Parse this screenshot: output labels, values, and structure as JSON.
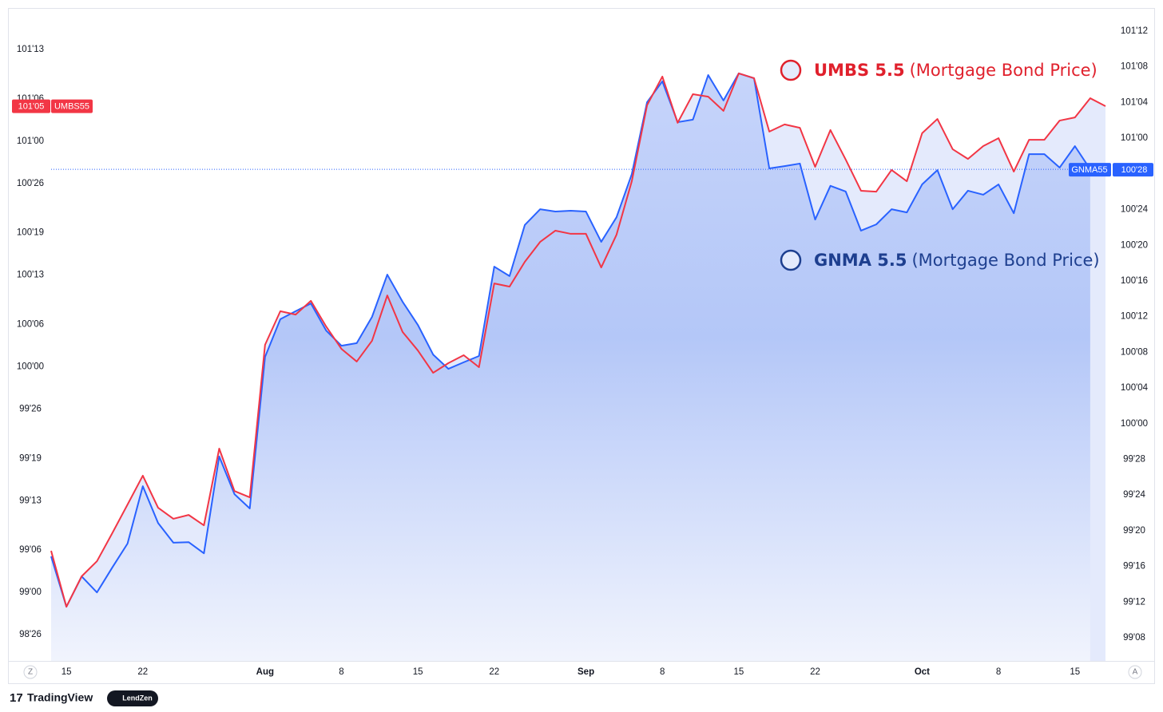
{
  "chart_data": {
    "type": "line",
    "categories": [
      null,
      "15",
      null,
      null,
      null,
      null,
      "22",
      null,
      null,
      null,
      null,
      null,
      null,
      null,
      "Aug",
      null,
      null,
      null,
      null,
      "8",
      null,
      null,
      null,
      null,
      "15",
      null,
      null,
      null,
      null,
      "22",
      null,
      null,
      null,
      null,
      null,
      "Sep",
      null,
      null,
      null,
      null,
      "8",
      null,
      null,
      null,
      null,
      "15",
      null,
      null,
      null,
      null,
      "22",
      null,
      null,
      null,
      null,
      null,
      null,
      "Oct",
      null,
      null,
      null,
      null,
      "8",
      null,
      null,
      null,
      null,
      "15",
      null,
      null
    ],
    "series": [
      {
        "name": "UMBS 5.5",
        "note": "(Mortgage Bond Price)",
        "symbol": "UMBS55",
        "color": "#f23645",
        "axis": "y",
        "last_price": {
          "value": 101.156,
          "label": "101'05"
        },
        "values": [
          99.184,
          98.936,
          99.071,
          99.138,
          99.262,
          99.389,
          99.517,
          99.375,
          99.326,
          99.343,
          99.297,
          99.637,
          99.449,
          99.421,
          100.097,
          100.246,
          100.231,
          100.292,
          100.178,
          100.079,
          100.023,
          100.115,
          100.316,
          100.154,
          100.072,
          99.973,
          100.016,
          100.051,
          99.998,
          100.369,
          100.355,
          100.465,
          100.553,
          100.603,
          100.589,
          100.589,
          100.44,
          100.585,
          100.822,
          101.159,
          101.286,
          101.081,
          101.208,
          101.197,
          101.134,
          101.3,
          101.279,
          101.042,
          101.074,
          101.059,
          100.886,
          101.049,
          100.918,
          100.78,
          100.776,
          100.872,
          100.822,
          101.035,
          101.098,
          100.964,
          100.921,
          100.978,
          101.013,
          100.865,
          101.006,
          101.006,
          101.091,
          101.105,
          101.19,
          101.155
        ]
      },
      {
        "name": "GNMA 5.5",
        "note": "(Mortgage Bond Price)",
        "symbol": "GNMA55",
        "color": "#2962ff",
        "axis": "y2",
        "last_price": {
          "value": 100.891,
          "label": "100'28"
        },
        "values": [
          99.535,
          99.359,
          99.465,
          99.409,
          99.496,
          99.58,
          99.781,
          99.652,
          99.583,
          99.585,
          99.546,
          99.885,
          99.753,
          99.703,
          100.234,
          100.366,
          100.394,
          100.421,
          100.326,
          100.273,
          100.282,
          100.374,
          100.522,
          100.427,
          100.346,
          100.242,
          100.192,
          100.215,
          100.237,
          100.55,
          100.517,
          100.696,
          100.751,
          100.743,
          100.746,
          100.743,
          100.637,
          100.723,
          100.874,
          101.126,
          101.199,
          101.056,
          101.065,
          101.221,
          101.132,
          101.227,
          101.21,
          100.894,
          100.902,
          100.911,
          100.715,
          100.833,
          100.813,
          100.676,
          100.698,
          100.751,
          100.74,
          100.838,
          100.888,
          100.751,
          100.816,
          100.802,
          100.838,
          100.737,
          100.944,
          100.944,
          100.897,
          100.972,
          100.891,
          null
        ]
      }
    ],
    "ylim": [
      98.696,
      101.59
    ],
    "yticks": [
      {
        "value": 98.8125,
        "label": "98'26"
      },
      {
        "value": 99,
        "label": "99'00"
      },
      {
        "value": 99.1875,
        "label": "99'06"
      },
      {
        "value": 99.40625,
        "label": "99'13"
      },
      {
        "value": 99.59375,
        "label": "99'19"
      },
      {
        "value": 99.8125,
        "label": "99'26"
      },
      {
        "value": 100,
        "label": "100'00"
      },
      {
        "value": 100.1875,
        "label": "100'06"
      },
      {
        "value": 100.40625,
        "label": "100'13"
      },
      {
        "value": 100.59375,
        "label": "100'19"
      },
      {
        "value": 100.8125,
        "label": "100'26"
      },
      {
        "value": 101,
        "label": "101'00"
      },
      {
        "value": 101.1875,
        "label": "101'06"
      },
      {
        "value": 101.40625,
        "label": "101'13"
      }
    ],
    "y2lim": [
      99.169,
      101.456
    ],
    "y2ticks": [
      {
        "value": 99.25,
        "label": "99'08"
      },
      {
        "value": 99.375,
        "label": "99'12"
      },
      {
        "value": 99.5,
        "label": "99'16"
      },
      {
        "value": 99.625,
        "label": "99'20"
      },
      {
        "value": 99.75,
        "label": "99'24"
      },
      {
        "value": 99.875,
        "label": "99'28"
      },
      {
        "value": 100,
        "label": "100'00"
      },
      {
        "value": 100.125,
        "label": "100'04"
      },
      {
        "value": 100.25,
        "label": "100'08"
      },
      {
        "value": 100.375,
        "label": "100'12"
      },
      {
        "value": 100.5,
        "label": "100'16"
      },
      {
        "value": 100.625,
        "label": "100'20"
      },
      {
        "value": 100.75,
        "label": "100'24"
      },
      {
        "value": 100.875,
        "label": "100'28"
      },
      {
        "value": 101,
        "label": "101'00"
      },
      {
        "value": 101.125,
        "label": "101'04"
      },
      {
        "value": 101.25,
        "label": "101'08"
      },
      {
        "value": 101.375,
        "label": "101'12"
      }
    ],
    "grid": false
  },
  "footer": {
    "left_button": "Z",
    "right_button": "A",
    "brand": "TradingView",
    "partner": "LendZen"
  }
}
